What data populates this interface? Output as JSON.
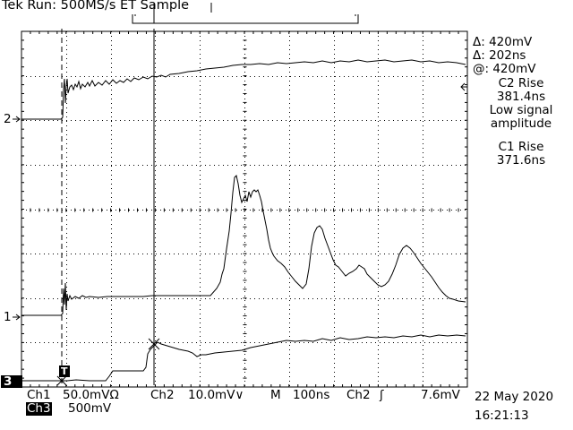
{
  "header": {
    "title": "Tek Run: 500MS/s ET Sample"
  },
  "channels": {
    "ch1_marker": "1",
    "ch2_marker": "2",
    "ch3_marker": "3",
    "trigger_marker": "T"
  },
  "cursor_readout": {
    "delta_v": "Δ: 420mV",
    "delta_t": "Δ: 202ns",
    "at_v": "@: 420mV"
  },
  "measurements": {
    "c2_title": "C2 Rise",
    "c2_value": "381.4ns",
    "c2_note_line1": "Low signal",
    "c2_note_line2": "amplitude",
    "c1_title": "C1 Rise",
    "c1_value": "371.6ns"
  },
  "footer": {
    "ch1": "Ch1",
    "ch1_scale": "50.0mVΩ",
    "ch2": "Ch2",
    "ch2_scale": "10.0mV∨",
    "timebase_label": "M",
    "timebase": "100ns",
    "trigger_source": "Ch2",
    "trigger_slope": "ʃ",
    "trigger_level": "7.6mV",
    "ch3": "Ch3",
    "ch3_scale": "500mV",
    "date": "22 May 2020",
    "time": "16:21:13"
  }
}
